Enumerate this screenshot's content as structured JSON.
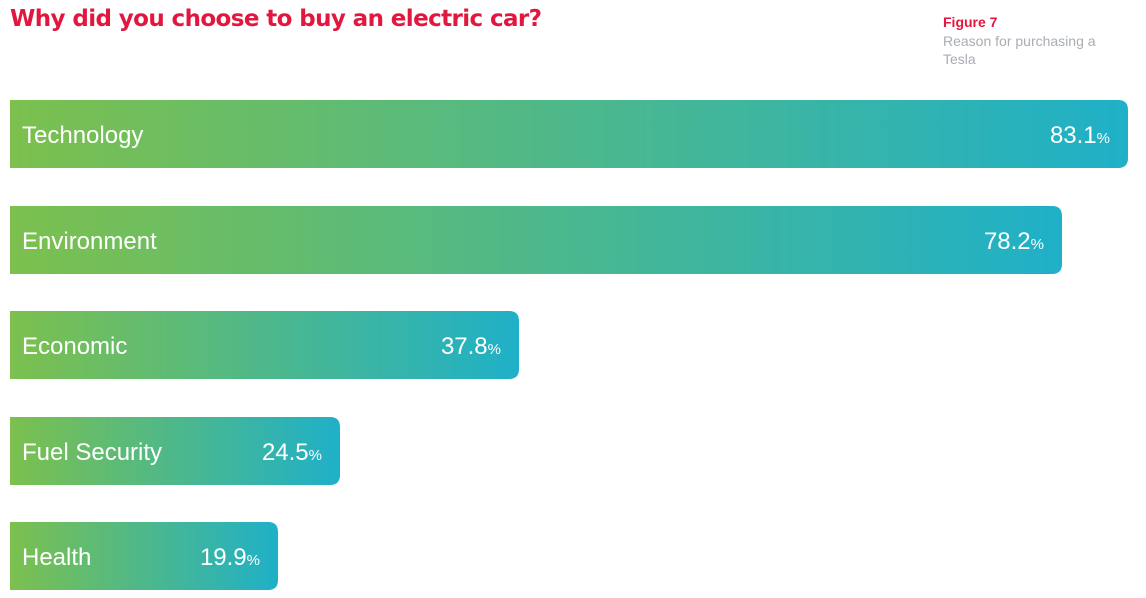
{
  "header": {
    "title": "Why did you choose to buy an electric car?",
    "figure_label": "Figure 7",
    "figure_caption": "Reason for purchasing a Tesla"
  },
  "colors": {
    "title": "#e2173f",
    "figure_label": "#e2173f",
    "caption": "#a8adb3",
    "bar_start": "#7cc04e",
    "bar_end": "#1fb0c8",
    "text_on_bar": "#ffffff"
  },
  "chart_data": {
    "type": "bar",
    "orientation": "horizontal",
    "title": "Why did you choose to buy an electric car?",
    "categories": [
      "Technology",
      "Environment",
      "Economic",
      "Fuel Security",
      "Health"
    ],
    "values": [
      83.1,
      78.2,
      37.8,
      24.5,
      19.9
    ],
    "value_suffix": "%",
    "xlim": [
      0,
      83.1
    ],
    "grid": false,
    "legend": "none"
  }
}
